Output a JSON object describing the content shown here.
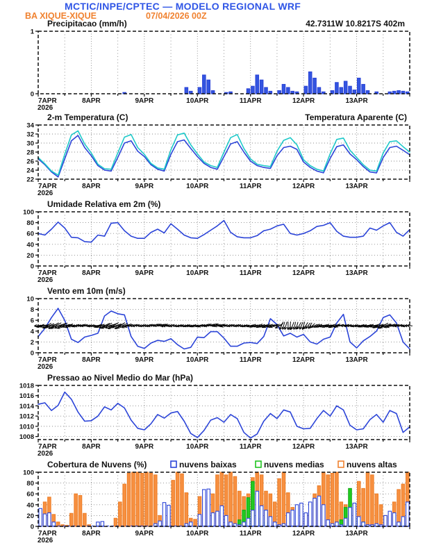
{
  "header": {
    "title": "MCTIC/INPE/CPTEC — MODELO REGIONAL WRF",
    "station": "BA XIQUE-XIQUE",
    "run": "07/04/2026 00Z",
    "location": "42.7311W 10.8217S 402m",
    "title_color": "#2f55e6",
    "accent_color": "#f08230"
  },
  "x_axis": {
    "day_labels": [
      "7APR",
      "8APR",
      "9APR",
      "10APR",
      "11APR",
      "12APR",
      "13APR"
    ],
    "year": "2026",
    "span_days": 7
  },
  "chart_data": [
    {
      "id": "precipitation",
      "type": "bar",
      "title": "Precipitacao (mm/h)",
      "annotation": {
        "text": "42.7311W 10.8217S 402m",
        "color": "#f08230"
      },
      "ylim": [
        0,
        1
      ],
      "yticks": [
        0,
        1
      ],
      "x": {
        "step_hours": 2
      },
      "series": [
        {
          "name": "precipitacao",
          "color": "#2b44d8",
          "fill": "#3355e0",
          "values": [
            0,
            0,
            0,
            0,
            0,
            0,
            0,
            0,
            0,
            0,
            0,
            0,
            0,
            0,
            0,
            0,
            0,
            0,
            0,
            0.02,
            0,
            0,
            0,
            0,
            0,
            0,
            0,
            0,
            0,
            0,
            0,
            0,
            0,
            0.1,
            0.04,
            0,
            0.1,
            0.3,
            0.22,
            0.05,
            0,
            0,
            0.02,
            0.03,
            0,
            0,
            0,
            0.08,
            0.12,
            0.3,
            0.22,
            0.1,
            0.04,
            0,
            0.05,
            0.15,
            0.1,
            0.04,
            0.03,
            0,
            0.12,
            0.35,
            0.25,
            0.1,
            0.03,
            0,
            0.05,
            0.18,
            0.1,
            0.2,
            0.12,
            0.06,
            0.25,
            0.15,
            0.05,
            0,
            0.03,
            0,
            0,
            0.03,
            0.04,
            0.05,
            0.04,
            0.03
          ]
        }
      ]
    },
    {
      "id": "temperature",
      "type": "line",
      "title": "2-m Temperatura (C)",
      "title_right": {
        "text": "Temperatura Aparente (C)",
        "color": "#1ec9c9"
      },
      "ylim": [
        22,
        34
      ],
      "yticks": [
        22,
        24,
        26,
        28,
        30,
        32,
        34
      ],
      "x": {
        "step_hours": 3
      },
      "series": [
        {
          "name": "2-m Temperatura (C)",
          "color": "#2b44d8",
          "values": [
            26.5,
            25.2,
            23.6,
            22.5,
            26.5,
            30.5,
            31.7,
            29.0,
            27.2,
            25.0,
            24.0,
            23.8,
            26.8,
            30.0,
            30.5,
            28.2,
            27.0,
            25.2,
            24.2,
            23.8,
            27.5,
            30.3,
            30.7,
            28.8,
            27.0,
            25.5,
            24.6,
            24.2,
            27.0,
            29.8,
            30.3,
            28.0,
            26.0,
            25.0,
            24.6,
            24.4,
            27.2,
            29.0,
            29.3,
            28.6,
            25.8,
            24.6,
            23.8,
            23.4,
            26.6,
            29.2,
            29.6,
            27.6,
            26.3,
            24.8,
            23.6,
            23.4,
            26.8,
            29.0,
            29.3,
            28.4,
            27.4
          ]
        },
        {
          "name": "Temperatura Aparente (C)",
          "color": "#1ec9c9",
          "values": [
            26.8,
            25.4,
            23.8,
            22.9,
            27.5,
            31.8,
            32.7,
            29.8,
            27.8,
            25.3,
            24.3,
            24.2,
            27.8,
            31.3,
            31.9,
            29.0,
            27.5,
            25.5,
            24.5,
            24.2,
            28.5,
            31.8,
            32.2,
            29.6,
            27.6,
            25.8,
            25.0,
            24.6,
            28.0,
            31.2,
            31.9,
            28.8,
            26.5,
            25.3,
            25.0,
            24.8,
            28.2,
            30.6,
            31.2,
            29.6,
            26.3,
            25.0,
            24.2,
            23.8,
            27.6,
            30.8,
            31.1,
            28.4,
            26.8,
            25.2,
            24.0,
            23.8,
            27.8,
            30.3,
            30.5,
            29.2,
            28.0
          ]
        }
      ]
    },
    {
      "id": "humidity",
      "type": "line",
      "title": "Umidade Relativa em 2m (%)",
      "ylim": [
        0,
        100
      ],
      "yticks": [
        0,
        20,
        40,
        60,
        80,
        100
      ],
      "x": {
        "step_hours": 3
      },
      "series": [
        {
          "name": "umidade relativa",
          "color": "#2b44d8",
          "values": [
            60,
            57,
            68,
            81,
            70,
            53,
            52,
            45,
            44,
            57,
            55,
            79,
            80,
            65,
            55,
            51,
            51,
            62,
            68,
            61,
            78,
            68,
            57,
            52,
            51,
            58,
            66,
            74,
            84,
            62,
            54,
            52,
            52,
            56,
            65,
            68,
            74,
            77,
            60,
            57,
            60,
            65,
            73,
            75,
            80,
            64,
            55,
            53,
            53,
            55,
            70,
            66,
            74,
            80,
            62,
            55,
            67
          ]
        }
      ]
    },
    {
      "id": "wind",
      "type": "line",
      "title": "Vento em 10m (m/s)",
      "ylim": [
        0,
        10
      ],
      "yticks": [
        0,
        2,
        4,
        6,
        8,
        10
      ],
      "x": {
        "step_hours": 3
      },
      "series": [
        {
          "name": "velocidade do vento",
          "color": "#2b44d8",
          "values": [
            3.0,
            4.5,
            6.5,
            8.2,
            6.0,
            2.5,
            1.9,
            2.9,
            3.2,
            3.6,
            6.8,
            7.7,
            7.2,
            7.0,
            3.0,
            1.2,
            0.8,
            1.8,
            2.3,
            2.1,
            2.6,
            1.5,
            0.7,
            1.0,
            2.9,
            2.8,
            3.9,
            3.9,
            2.7,
            1.2,
            1.2,
            1.8,
            1.9,
            1.7,
            3.0,
            6.3,
            5.2,
            3.1,
            3.6,
            2.9,
            3.4,
            2.0,
            1.6,
            2.5,
            2.9,
            5.5,
            7.1,
            2.0,
            0.9,
            2.2,
            3.0,
            4.0,
            6.5,
            7.0,
            5.5,
            2.0,
            0.7
          ]
        }
      ],
      "barbs": {
        "color": "#000000",
        "level": 5,
        "directions_toward_deg": [
          185,
          195,
          205,
          210,
          200,
          190,
          185,
          180,
          178,
          188,
          202,
          208,
          202,
          196,
          186,
          178,
          180,
          174,
          168,
          164,
          170,
          180,
          190,
          196,
          186,
          180,
          174,
          168,
          164,
          172,
          182,
          188,
          192,
          198,
          204,
          196,
          186,
          255,
          268,
          252,
          242,
          228,
          210,
          200,
          194,
          188,
          184,
          180,
          186,
          192,
          198,
          204,
          196,
          190,
          184,
          181,
          180
        ]
      }
    },
    {
      "id": "pressure",
      "type": "line",
      "title": "Pressao ao Nivel Medio do Mar (hPa)",
      "ylim": [
        1007.4,
        1018
      ],
      "yticks": [
        1008,
        1010,
        1012,
        1014,
        1016,
        1018
      ],
      "x": {
        "step_hours": 3
      },
      "series": [
        {
          "name": "pressao ao nivel medio do mar",
          "color": "#2b44d8",
          "values": [
            1014.3,
            1014.6,
            1013.1,
            1014.1,
            1016.7,
            1015.3,
            1012.8,
            1011.0,
            1011.1,
            1012.0,
            1013.8,
            1013.2,
            1014.5,
            1013.6,
            1011.2,
            1009.6,
            1009.3,
            1010.5,
            1012.3,
            1011.6,
            1012.6,
            1012.9,
            1011.0,
            1008.6,
            1007.8,
            1009.2,
            1011.2,
            1011.7,
            1010.8,
            1012.3,
            1011.5,
            1008.8,
            1007.7,
            1008.5,
            1011.0,
            1012.5,
            1011.5,
            1013.2,
            1012.8,
            1010.0,
            1009.5,
            1009.6,
            1011.5,
            1013.1,
            1012.0,
            1014.0,
            1013.2,
            1010.2,
            1009.3,
            1009.5,
            1011.3,
            1012.3,
            1010.8,
            1013.1,
            1012.5,
            1008.8,
            1009.9
          ]
        }
      ]
    },
    {
      "id": "clouds",
      "type": "bar",
      "title": "Cobertura de Nuvens (%)",
      "ylim": [
        0,
        100
      ],
      "yticks": [
        0,
        20,
        40,
        60,
        80,
        100
      ],
      "x": {
        "step_hours": 2
      },
      "baseline_color": "#2b44d8",
      "legend": [
        {
          "label": "nuvens baixas",
          "color": "#2b44d8"
        },
        {
          "label": "nuvens medias",
          "color": "#1fc41f"
        },
        {
          "label": "nuvens altas",
          "color": "#f08230"
        }
      ],
      "series": [
        {
          "name": "nuvens altas",
          "color": "#ee7f28",
          "fill": "#f79041",
          "values": [
            5,
            45,
            54,
            22,
            8,
            3,
            2,
            24,
            60,
            57,
            24,
            3,
            0,
            0,
            2,
            0,
            0,
            15,
            45,
            78,
            98,
            100,
            100,
            98,
            100,
            98,
            95,
            20,
            10,
            20,
            85,
            100,
            97,
            62,
            15,
            13,
            55,
            50,
            45,
            60,
            95,
            100,
            95,
            100,
            92,
            65,
            55,
            60,
            90,
            100,
            95,
            65,
            60,
            45,
            88,
            100,
            62,
            35,
            5,
            8,
            22,
            25,
            60,
            75,
            100,
            95,
            98,
            100,
            45,
            40,
            25,
            42,
            83,
            70,
            100,
            95,
            60,
            40,
            20,
            22,
            45,
            68,
            78,
            100
          ]
        },
        {
          "name": "nuvens medias",
          "color": "#12a812",
          "fill": "#22cc22",
          "values": [
            0,
            0,
            0,
            0,
            0,
            0,
            0,
            0,
            0,
            0,
            0,
            0,
            0,
            0,
            0,
            0,
            0,
            0,
            0,
            0,
            0,
            0,
            0,
            0,
            0,
            0,
            0,
            0,
            0,
            0,
            0,
            0,
            0,
            0,
            0,
            0,
            0,
            0,
            0,
            0,
            0,
            0,
            0,
            0,
            0,
            12,
            30,
            53,
            83,
            47,
            15,
            8,
            0,
            0,
            0,
            0,
            0,
            0,
            0,
            0,
            0,
            0,
            0,
            0,
            0,
            0,
            0,
            0,
            12,
            35,
            70,
            15,
            0,
            8,
            0,
            0,
            0,
            0,
            0,
            0,
            0,
            0,
            5,
            0
          ]
        },
        {
          "name": "nuvens baixas",
          "color": "#2b44d8",
          "fill": "#ffffff",
          "values": [
            33,
            23,
            25,
            8,
            0,
            0,
            0,
            0,
            0,
            0,
            0,
            0,
            0,
            8,
            9,
            0,
            0,
            0,
            0,
            0,
            0,
            0,
            0,
            0,
            0,
            0,
            5,
            10,
            44,
            39,
            0,
            0,
            0,
            5,
            8,
            0,
            22,
            68,
            69,
            25,
            28,
            38,
            20,
            8,
            5,
            3,
            8,
            15,
            30,
            65,
            38,
            30,
            18,
            8,
            3,
            5,
            25,
            30,
            40,
            43,
            25,
            45,
            52,
            56,
            40,
            12,
            5,
            8,
            3,
            15,
            35,
            43,
            18,
            8,
            3,
            3,
            5,
            3,
            20,
            28,
            25,
            8,
            18,
            45
          ]
        }
      ]
    }
  ]
}
